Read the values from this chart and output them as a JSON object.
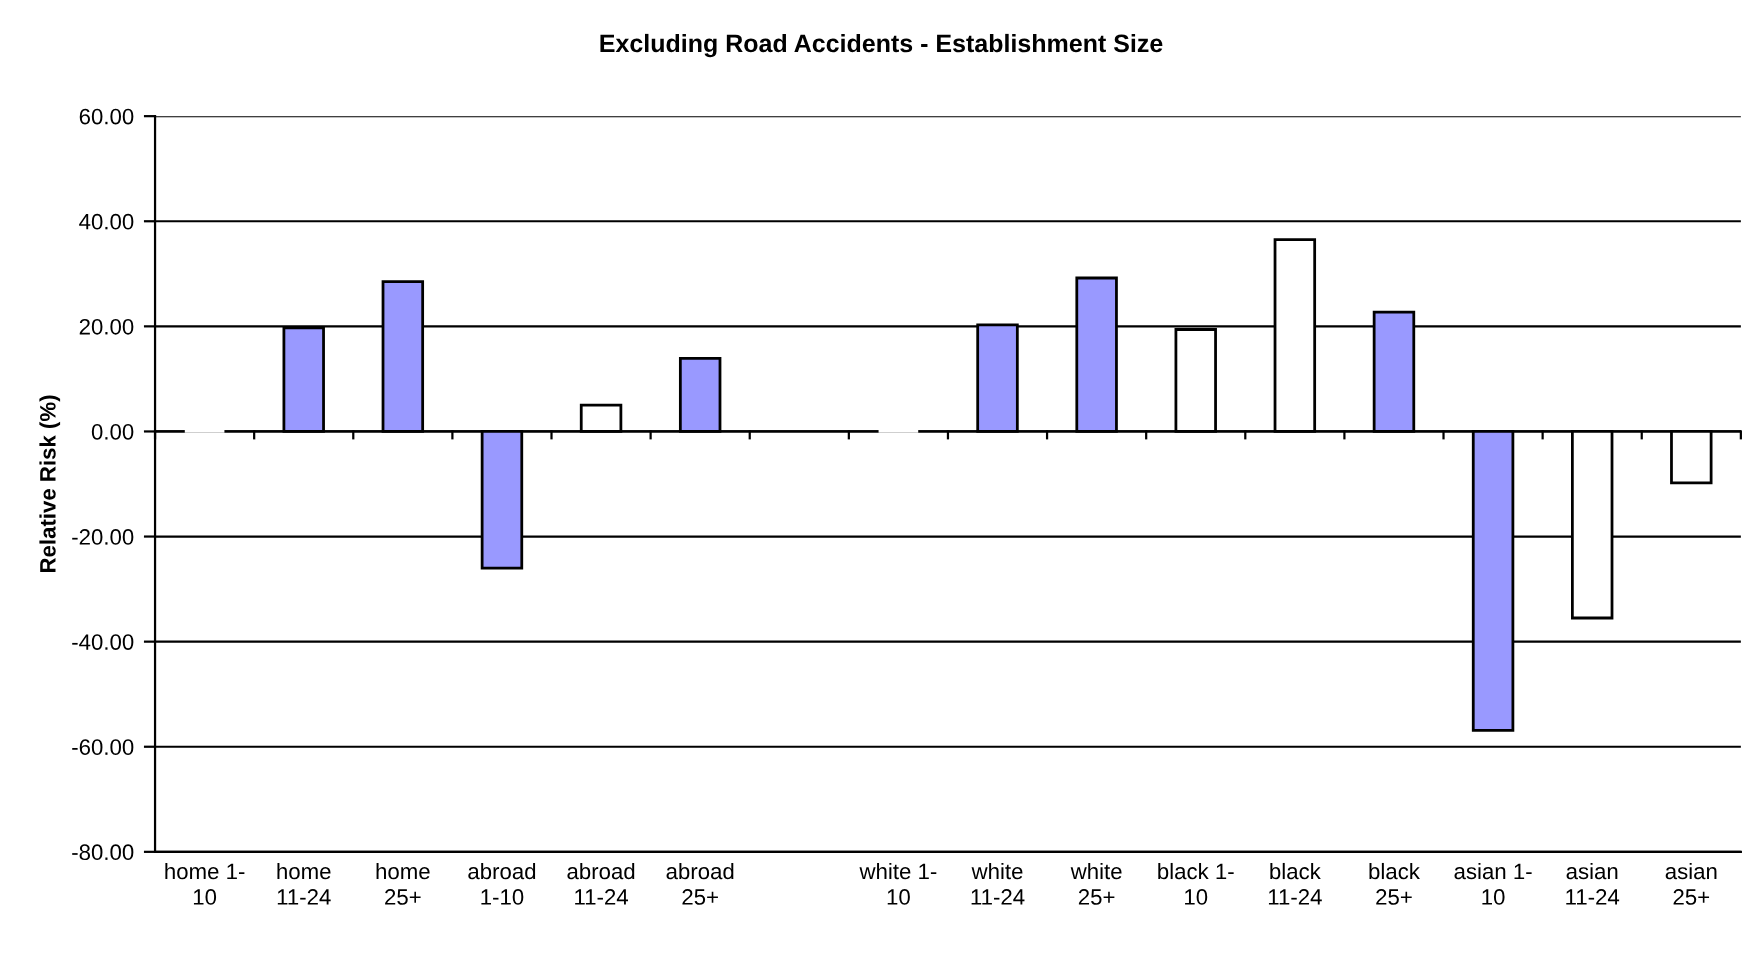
{
  "chart_data": {
    "type": "bar",
    "title": "Excluding Road Accidents - Establishment Size",
    "ylabel": "Relative Risk (%)",
    "categories": [
      "home 1-\n10",
      "home\n11-24",
      "home\n25+",
      "abroad\n1-10",
      "abroad\n11-24",
      "abroad\n25+",
      null,
      "white 1-\n10",
      "white\n11-24",
      "white\n25+",
      "black 1-\n10",
      "black\n11-24",
      "black\n25+",
      "asian 1-\n10",
      "asian\n11-24",
      "asian\n25+"
    ],
    "values": [
      0,
      19.7,
      28.5,
      -26.0,
      5.0,
      13.9,
      null,
      0,
      20.3,
      29.2,
      19.4,
      36.5,
      22.7,
      -56.9,
      -35.5,
      -9.8
    ],
    "colors": [
      "#ffffff",
      "#9999ff",
      "#9999ff",
      "#9999ff",
      "#ffffff",
      "#9999ff",
      "#ffffff",
      "#ffffff",
      "#9999ff",
      "#9999ff",
      "#ffffff",
      "#ffffff",
      "#9999ff",
      "#9999ff",
      "#ffffff",
      "#ffffff"
    ],
    "ylim": [
      -80,
      60
    ],
    "yticks": [
      {
        "value": -80,
        "label": "-80.00"
      },
      {
        "value": -60,
        "label": "-60.00"
      },
      {
        "value": -40,
        "label": "-40.00"
      },
      {
        "value": -20,
        "label": "-20.00"
      },
      {
        "value": 0,
        "label": "0.00"
      },
      {
        "value": 20,
        "label": "20.00"
      },
      {
        "value": 40,
        "label": "40.00"
      },
      {
        "value": 60,
        "label": "60.00"
      }
    ],
    "grid": "y",
    "legend": false
  }
}
